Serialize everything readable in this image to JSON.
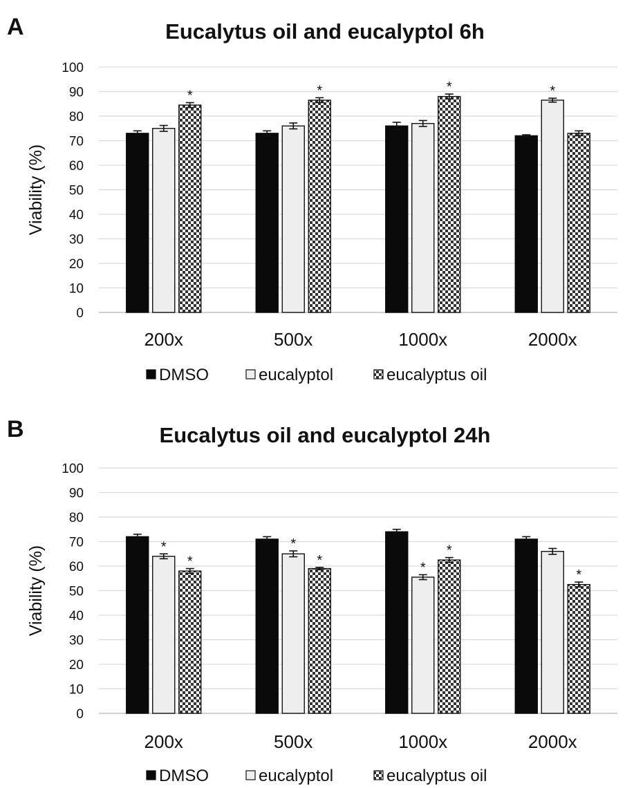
{
  "chart_data": [
    {
      "type": "bar",
      "panel_label": "A",
      "title": "Eucalytus oil and eucalyptol 6h",
      "ylabel": "Viability (%)",
      "xlabel": "",
      "ylim": [
        0,
        100
      ],
      "yticks": [
        0,
        10,
        20,
        30,
        40,
        50,
        60,
        70,
        80,
        90,
        100
      ],
      "grid": true,
      "legend_position": "bottom",
      "categories": [
        "200x",
        "500x",
        "1000x",
        "2000x"
      ],
      "series": [
        {
          "name": "DMSO",
          "fill": "solid-black",
          "values": [
            73,
            73,
            76,
            72
          ],
          "errors": [
            1.0,
            1.0,
            1.5,
            0.4
          ],
          "significant": [
            false,
            false,
            false,
            false
          ]
        },
        {
          "name": "eucalyptol",
          "fill": "light-gray",
          "values": [
            75,
            76,
            77,
            86.5
          ],
          "errors": [
            1.2,
            1.2,
            1.2,
            0.8
          ],
          "significant": [
            false,
            false,
            false,
            true
          ]
        },
        {
          "name": "eucalyptus oil",
          "fill": "checker",
          "values": [
            84.5,
            86.5,
            88,
            73
          ],
          "errors": [
            1.0,
            1.0,
            1.0,
            1.0
          ],
          "significant": [
            true,
            true,
            true,
            false
          ]
        }
      ],
      "annotation_symbol": "*"
    },
    {
      "type": "bar",
      "panel_label": "B",
      "title": "Eucalytus oil and eucalyptol 24h",
      "ylabel": "Viability (%)",
      "xlabel": "",
      "ylim": [
        0,
        100
      ],
      "yticks": [
        0,
        10,
        20,
        30,
        40,
        50,
        60,
        70,
        80,
        90,
        100
      ],
      "grid": true,
      "legend_position": "bottom",
      "categories": [
        "200x",
        "500x",
        "1000x",
        "2000x"
      ],
      "series": [
        {
          "name": "DMSO",
          "fill": "solid-black",
          "values": [
            72,
            71,
            74,
            71
          ],
          "errors": [
            1.0,
            1.0,
            1.0,
            1.0
          ],
          "significant": [
            false,
            false,
            false,
            false
          ]
        },
        {
          "name": "eucalyptol",
          "fill": "light-gray",
          "values": [
            64,
            65,
            55.5,
            66
          ],
          "errors": [
            1.0,
            1.2,
            1.0,
            1.2
          ],
          "significant": [
            true,
            true,
            true,
            false
          ]
        },
        {
          "name": "eucalyptus oil",
          "fill": "checker",
          "values": [
            58,
            59,
            62.5,
            52.5
          ],
          "errors": [
            1.0,
            0.5,
            1.0,
            1.0
          ],
          "significant": [
            true,
            true,
            true,
            true
          ]
        }
      ],
      "annotation_symbol": "*"
    }
  ]
}
